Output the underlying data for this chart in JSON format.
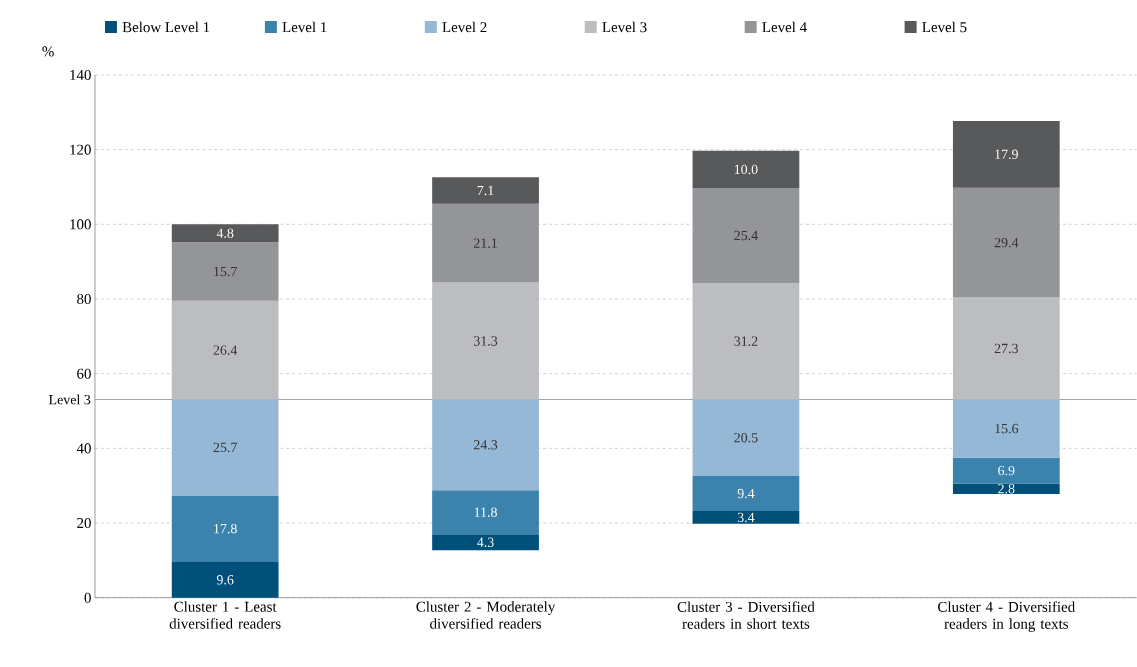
{
  "chart_data": {
    "type": "bar",
    "ylabel": "%",
    "categories": [
      "Cluster 1 - Least diversified readers",
      "Cluster 2 - Moderately diversified readers",
      "Cluster 3 - Diversified readers in short texts",
      "Cluster 4 - Diversified readers in long texts"
    ],
    "series": [
      {
        "name": "Below Level 1",
        "color": "#00507a",
        "base": [
          0,
          12.7,
          19.8,
          27.8
        ],
        "values": [
          9.6,
          4.3,
          3.4,
          2.8
        ],
        "value_labels": [
          "9.6",
          "4.3",
          "3.4",
          "2.8"
        ]
      },
      {
        "name": "Level 1",
        "color": "#3b82ad",
        "base": [
          9.6,
          17.0,
          23.2,
          30.6
        ],
        "values": [
          17.8,
          11.8,
          9.4,
          6.9
        ],
        "value_labels": [
          "17.8",
          "11.8",
          "9.4",
          "6.9"
        ]
      },
      {
        "name": "Level 2",
        "color": "#95b8d6",
        "base": [
          27.4,
          28.8,
          32.6,
          37.5
        ],
        "values": [
          25.7,
          24.3,
          20.5,
          15.6
        ],
        "value_labels": [
          "25.7",
          "24.3",
          "20.5",
          "15.6"
        ]
      },
      {
        "name": "Level 3",
        "color": "#bcbdc1",
        "base": [
          53.1,
          53.1,
          53.1,
          53.1
        ],
        "values": [
          26.4,
          31.3,
          31.2,
          27.3
        ],
        "value_labels": [
          "26.4",
          "31.3",
          "31.2",
          "27.3"
        ]
      },
      {
        "name": "Level 4",
        "color": "#949598",
        "base": [
          79.5,
          84.4,
          84.3,
          80.4
        ],
        "values": [
          15.7,
          21.1,
          25.4,
          29.4
        ],
        "value_labels": [
          "15.7",
          "21.1",
          "25.4",
          "29.4"
        ]
      },
      {
        "name": "Level 5",
        "color": "#58595b",
        "base": [
          95.2,
          105.5,
          109.7,
          109.8
        ],
        "values": [
          4.8,
          7.1,
          10.0,
          17.9
        ],
        "value_labels": [
          "4.8",
          "7.1",
          "10.0",
          "17.9"
        ]
      }
    ],
    "ylim": [
      0,
      140
    ],
    "yticks": [
      0,
      20,
      40,
      60,
      80,
      100,
      120,
      140
    ],
    "grid": "y",
    "legend": "top",
    "ref_lines": [
      {
        "axis": "y",
        "value": 53.1,
        "label": "Level 3",
        "color": "#a0a0a0"
      }
    ]
  }
}
